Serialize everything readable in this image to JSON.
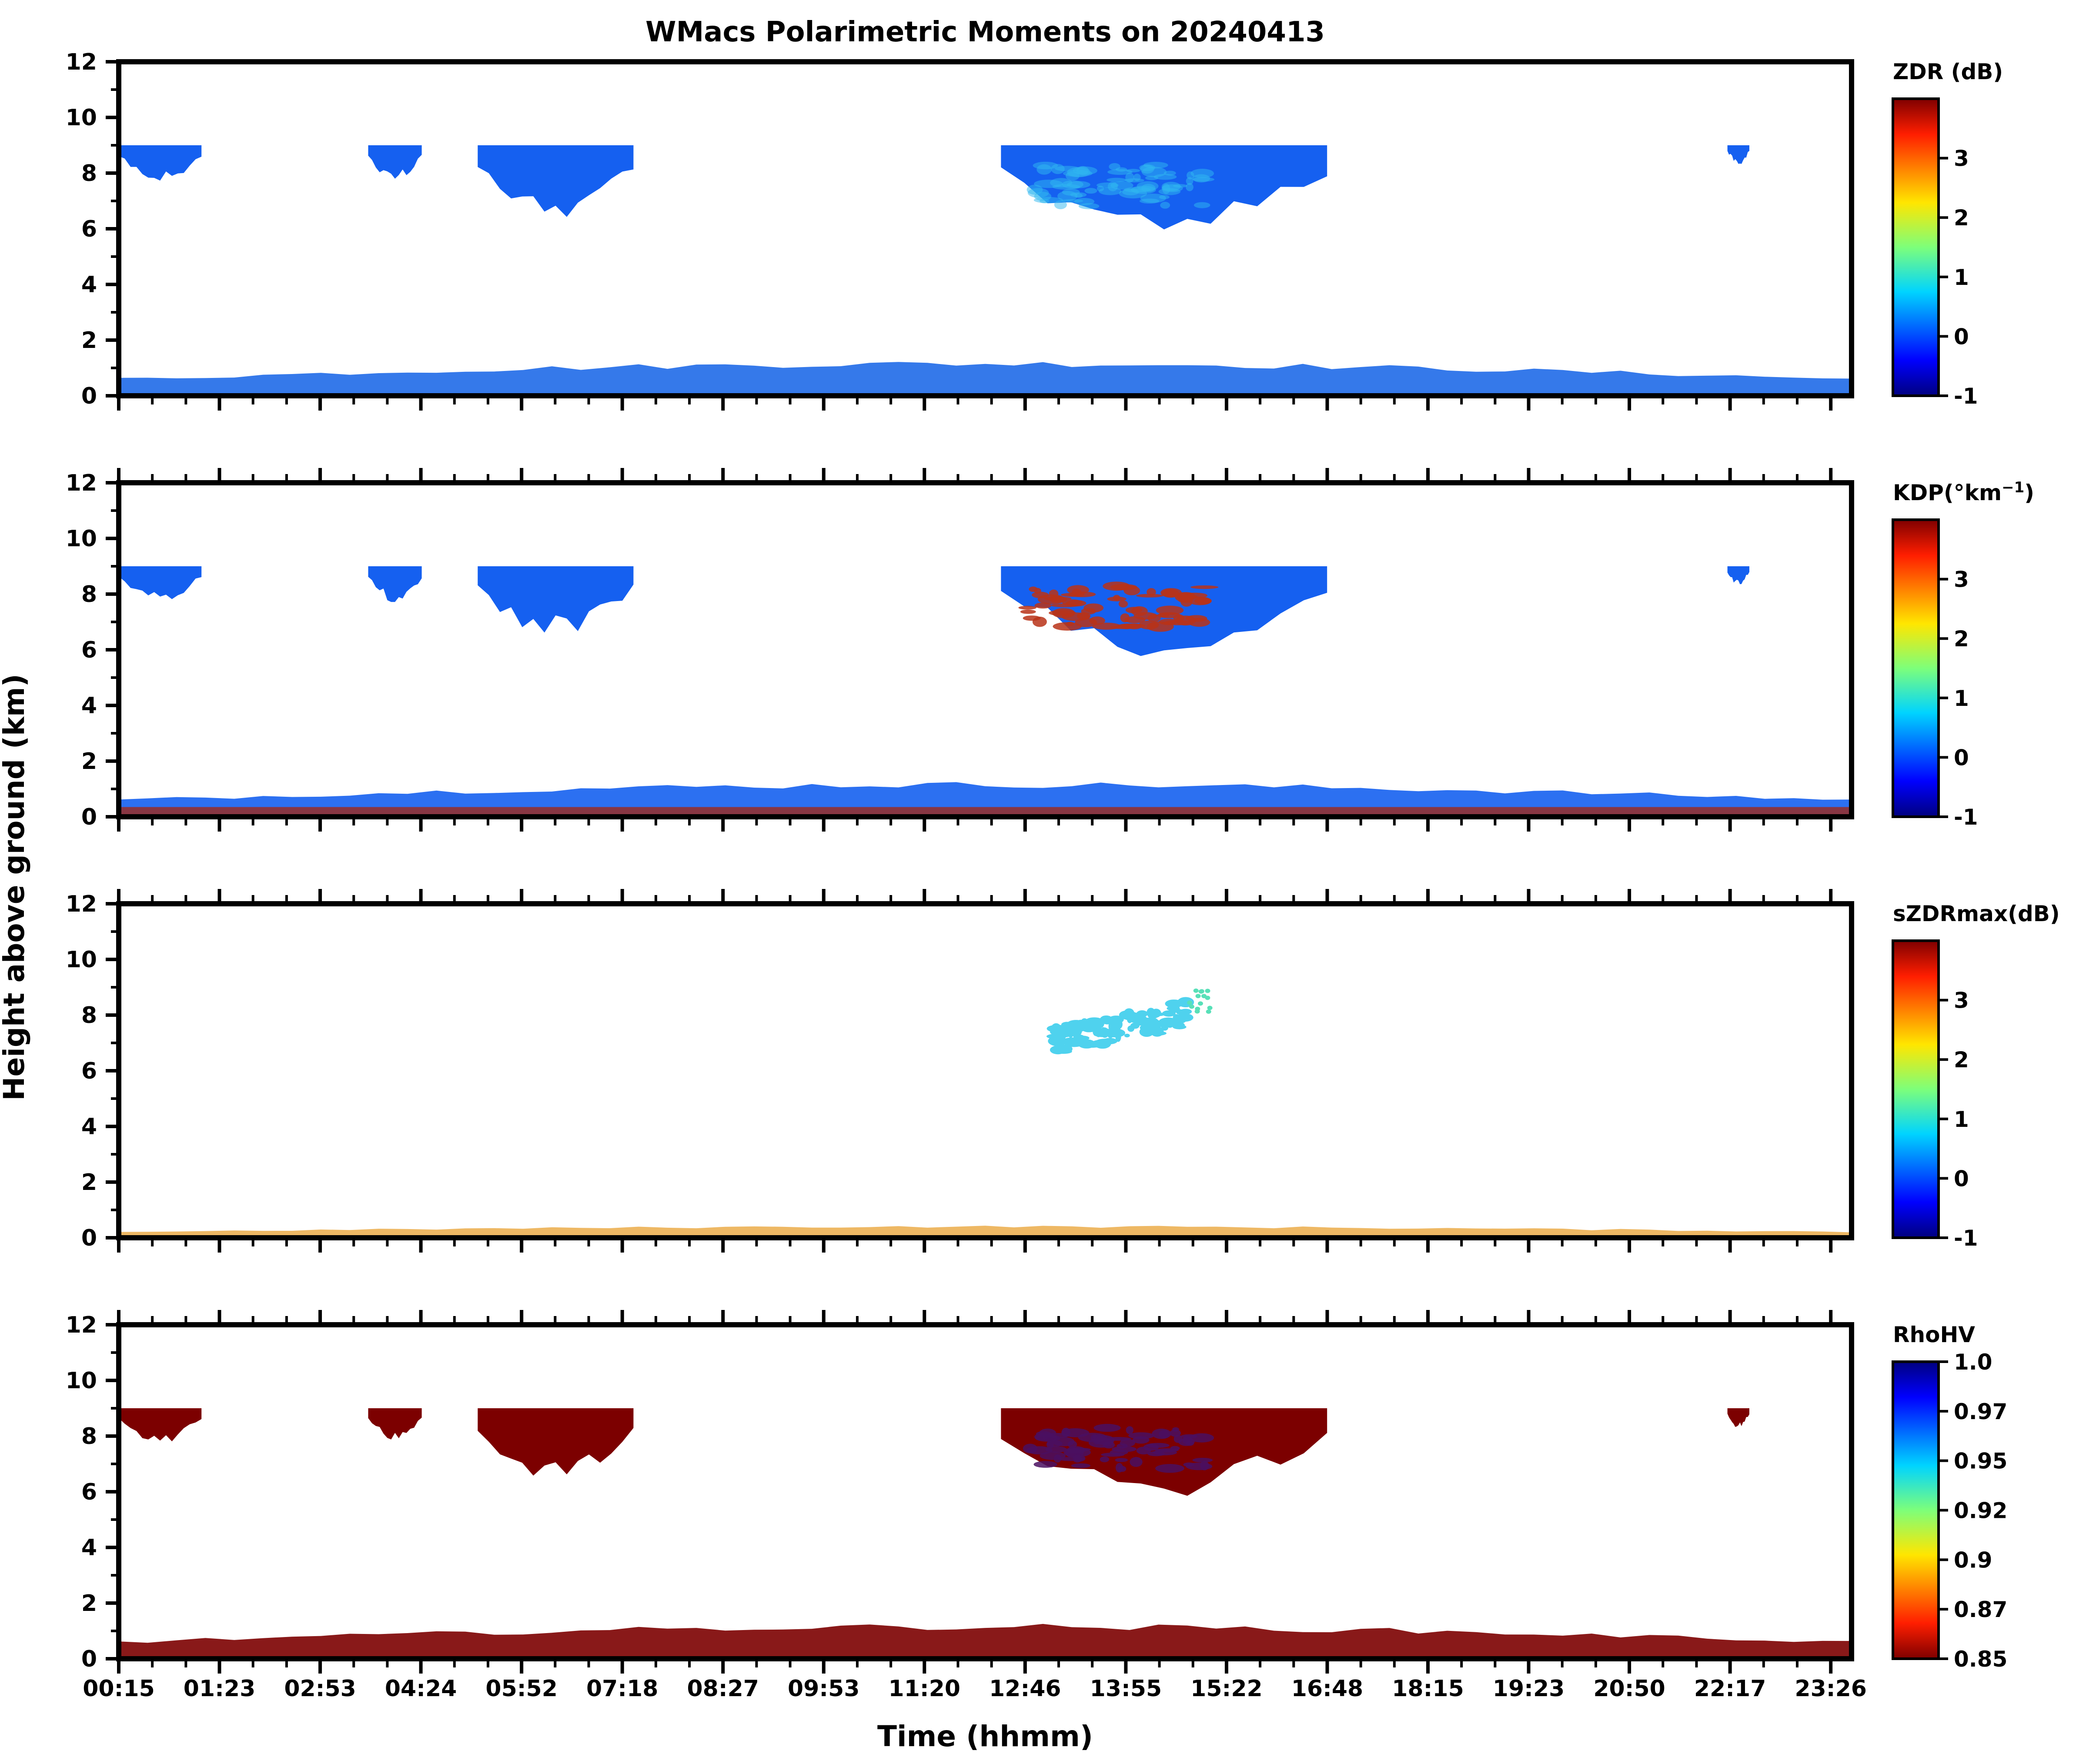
{
  "chart_data": {
    "type": "heatmap",
    "title": "WMacs Polarimetric Moments on 20240413",
    "xlabel": "Time (hhmm)",
    "ylabel": "Height above ground (km)",
    "x_tick_labels": [
      "00:15",
      "01:23",
      "02:53",
      "04:24",
      "05:52",
      "07:18",
      "08:27",
      "09:53",
      "11:20",
      "12:46",
      "13:55",
      "15:22",
      "16:48",
      "18:15",
      "19:23",
      "20:50",
      "22:17",
      "23:26"
    ],
    "ylim": [
      0,
      12
    ],
    "y_ticks": [
      "0",
      "2",
      "4",
      "6",
      "8",
      "10",
      "12"
    ],
    "panels": [
      {
        "name": "ZDR",
        "colorbar_label": "ZDR (dB)",
        "colorbar_ticks": [
          "-1",
          "0",
          "1",
          "2",
          "3"
        ],
        "colorbar_range": [
          -1,
          4
        ],
        "colormap": "jet",
        "upper_cloud_color": "#1560f0",
        "embedded_color": "#2fb8f0",
        "surface_color": "#1f6ae8"
      },
      {
        "name": "KDP",
        "colorbar_label_main": "KDP(°km",
        "colorbar_label_sup": "−1",
        "colorbar_label_end": ")",
        "colorbar_ticks": [
          "-1",
          "0",
          "1",
          "2",
          "3"
        ],
        "colorbar_range": [
          -1,
          4
        ],
        "colormap": "jet",
        "upper_cloud_color": "#1560f0",
        "embedded_color": "#b83218",
        "surface_color": "#1560f0"
      },
      {
        "name": "sZDRmax",
        "colorbar_label": "sZDRmax(dB)",
        "colorbar_ticks": [
          "-1",
          "0",
          "1",
          "2",
          "3"
        ],
        "colorbar_range": [
          -1,
          4
        ],
        "colormap": "jet",
        "upper_cloud_color": "#4fd2ee",
        "embedded_color": "#58e0b8",
        "surface_color": "#e8a030"
      },
      {
        "name": "RhoHV",
        "colorbar_label": "RhoHV",
        "colorbar_ticks": [
          "1.0",
          "0.97",
          "0.95",
          "0.92",
          "0.9",
          "0.87",
          "0.85"
        ],
        "colorbar_range": [
          0.85,
          1.0
        ],
        "colormap": "jet_r",
        "upper_cloud_color": "#7c0000",
        "embedded_color": "#4a0f60",
        "surface_color": "#7c0000"
      }
    ],
    "cloud_regions_km": [
      {
        "time_start": "00:15",
        "time_end": "01:23",
        "base": 7.9,
        "top": 9.0
      },
      {
        "time_start": "03:40",
        "time_end": "04:24",
        "base": 7.9,
        "top": 9.0
      },
      {
        "time_start": "05:10",
        "time_end": "07:18",
        "base": 6.8,
        "top": 9.0
      },
      {
        "time_start": "12:20",
        "time_end": "16:48",
        "base": 6.2,
        "top": 9.0
      },
      {
        "time_start": "22:17",
        "time_end": "22:35",
        "base": 8.4,
        "top": 9.0
      }
    ],
    "boundary_layer_top_km": 1.0,
    "grid": false
  }
}
